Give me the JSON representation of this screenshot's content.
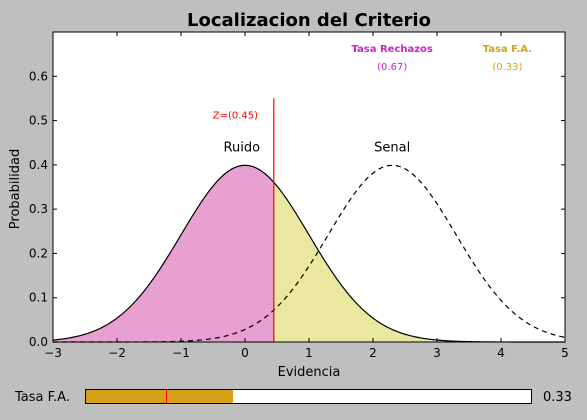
{
  "chart_data": {
    "type": "area",
    "title": "Localizacion del Criterio",
    "xlabel": "Evidencia",
    "ylabel": "Probabilidad",
    "xlim": [
      -3,
      5
    ],
    "ylim": [
      0,
      0.7
    ],
    "xticks": [
      -3,
      -2,
      -1,
      0,
      1,
      2,
      3,
      4,
      5
    ],
    "yticks": [
      0.0,
      0.1,
      0.2,
      0.3,
      0.4,
      0.5,
      0.6
    ],
    "series": [
      {
        "name": "Ruido",
        "distribution": "normal",
        "mean": 0,
        "sd": 1,
        "style": "solid",
        "color": "#000000"
      },
      {
        "name": "Senal",
        "distribution": "normal",
        "mean": 2.3,
        "sd": 1,
        "style": "dashed",
        "color": "#000000"
      }
    ],
    "criterion": {
      "z": 0.45,
      "label": "Z=(0.45)",
      "color": "#ff0000",
      "line_top": 0.55
    },
    "regions": [
      {
        "name": "correct-rejection",
        "from": -3,
        "to": 0.45,
        "color": "#e8a0d0"
      },
      {
        "name": "false-alarm",
        "from": 0.45,
        "to": 5,
        "color": "#eae8a0"
      }
    ],
    "annotations": [
      {
        "text": "Ruido",
        "x": -0.05,
        "y": 0.43,
        "color": "#000000"
      },
      {
        "text": "Senal",
        "x": 2.3,
        "y": 0.43,
        "color": "#000000"
      },
      {
        "text": "Z=(0.45)",
        "x": -0.15,
        "y": 0.505,
        "color": "#ff0000"
      }
    ],
    "rates": [
      {
        "title": "Tasa Rechazos",
        "value": "(0.67)",
        "x": 2.3,
        "color": "#cc22cc"
      },
      {
        "title": "Tasa F.A.",
        "value": "(0.33)",
        "x": 4.1,
        "color": "#d4a017"
      }
    ],
    "grid": false
  },
  "slider": {
    "label": "Tasa F.A.",
    "value": 0.33,
    "value_text": "0.33",
    "initial_value": 0.18,
    "min": 0,
    "max": 1,
    "fill_color": "#d4a017",
    "marker_color": "#ff0000"
  }
}
